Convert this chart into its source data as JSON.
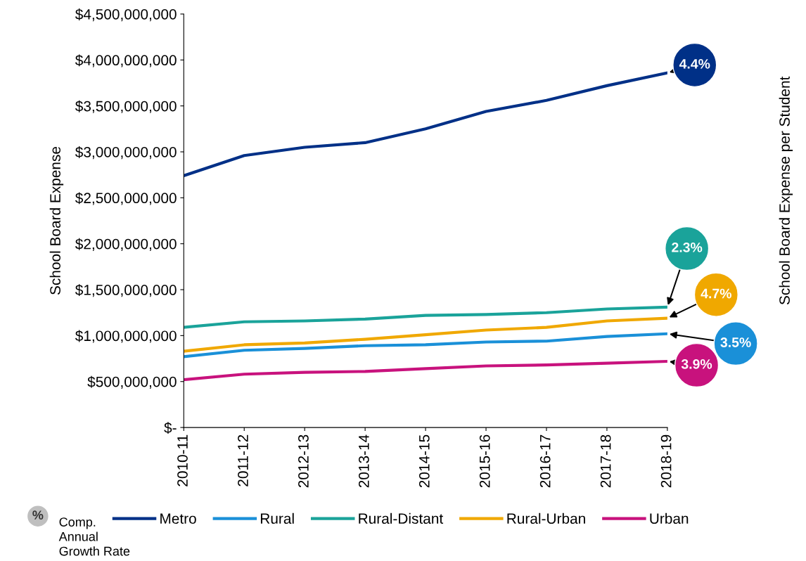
{
  "chart_data": {
    "type": "line",
    "ylabel": "School Board Expense",
    "categories": [
      "2010-11",
      "2011-12",
      "2012-13",
      "2013-14",
      "2014-15",
      "2015-16",
      "2016-17",
      "2017-18",
      "2018-19"
    ],
    "series": [
      {
        "name": "Metro",
        "color": "#003087",
        "values": [
          2740000000,
          2960000000,
          3050000000,
          3100000000,
          3250000000,
          3440000000,
          3560000000,
          3720000000,
          3860000000
        ]
      },
      {
        "name": "Rural",
        "color": "#1a90d8",
        "values": [
          770000000,
          840000000,
          860000000,
          890000000,
          900000000,
          930000000,
          940000000,
          990000000,
          1020000000
        ]
      },
      {
        "name": "Rural-Distant",
        "color": "#1aa39a",
        "values": [
          1090000000,
          1150000000,
          1160000000,
          1180000000,
          1220000000,
          1230000000,
          1250000000,
          1290000000,
          1310000000
        ]
      },
      {
        "name": "Rural-Urban",
        "color": "#f0a800",
        "values": [
          830000000,
          900000000,
          920000000,
          960000000,
          1010000000,
          1060000000,
          1090000000,
          1160000000,
          1190000000
        ]
      },
      {
        "name": "Urban",
        "color": "#c8127d",
        "values": [
          520000000,
          580000000,
          600000000,
          610000000,
          640000000,
          670000000,
          680000000,
          700000000,
          720000000
        ]
      }
    ],
    "ylim": [
      0,
      4500000000
    ],
    "yticks": [
      {
        "value": 0,
        "label": "$-"
      },
      {
        "value": 500000000,
        "label": "$500,000,000"
      },
      {
        "value": 1000000000,
        "label": "$1,000,000,000"
      },
      {
        "value": 1500000000,
        "label": "$1,500,000,000"
      },
      {
        "value": 2000000000,
        "label": "$2,000,000,000"
      },
      {
        "value": 2500000000,
        "label": "$2,500,000,000"
      },
      {
        "value": 3000000000,
        "label": "$3,000,000,000"
      },
      {
        "value": 3500000000,
        "label": "$3,500,000,000"
      },
      {
        "value": 4000000000,
        "label": "$4,000,000,000"
      },
      {
        "value": 4500000000,
        "label": "$4,500,000,000"
      }
    ],
    "annotations": [
      {
        "text": "4.4%",
        "x": "2018-19",
        "y": 3860000000
      },
      {
        "text": "3.5%",
        "x": "2018-19",
        "y": 1020000000
      },
      {
        "text": "2.3%",
        "x": "2018-19",
        "y": 1310000000
      },
      {
        "text": "4.7%",
        "x": "2018-19",
        "y": 1190000000
      },
      {
        "text": "3.9%",
        "x": "2018-19",
        "y": 720000000
      },
      "%",
      "Comp. Annual Growth Rate",
      "School Board Expense per Student"
    ],
    "legend": "bottom",
    "grid": false,
    "marker": "none",
    "line_style": "solid"
  }
}
